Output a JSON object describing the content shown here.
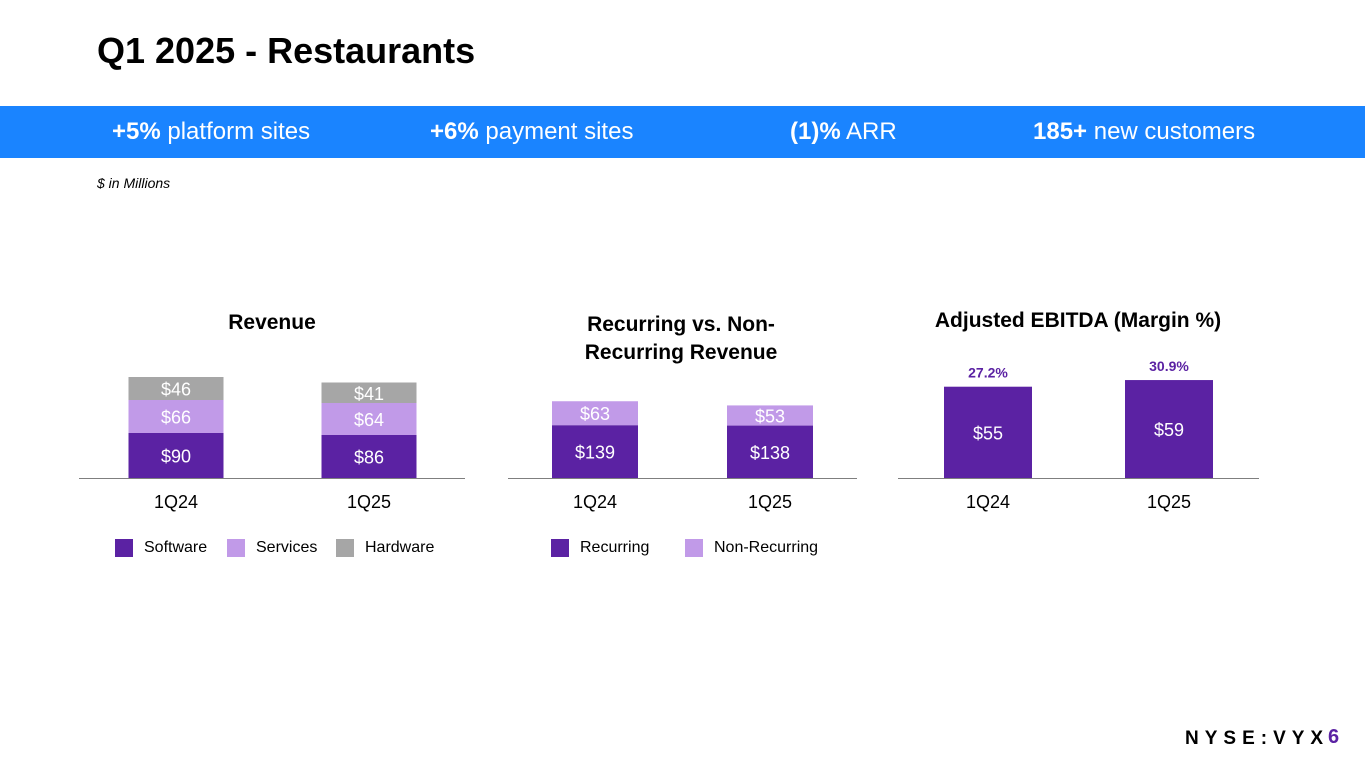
{
  "page": {
    "title": "Q1 2025 - Restaurants",
    "note": "$ in Millions",
    "brand": "NYSE:VYX",
    "page_number": "6"
  },
  "kpis": [
    {
      "value": "+5%",
      "label": "platform sites"
    },
    {
      "value": "+6%",
      "label": "payment sites"
    },
    {
      "value": "(1)%",
      "label": "ARR"
    },
    {
      "value": "185+",
      "label": "new customers"
    }
  ],
  "colors": {
    "banner": "#1a84ff",
    "software": "#5b22a3",
    "services": "#c19ae8",
    "hardware": "#a6a6a6",
    "recurring": "#5b22a3",
    "non_recurring": "#c19ae8",
    "ebitda": "#5b22a3"
  },
  "chart_data": [
    {
      "type": "bar",
      "stacked": true,
      "title": "Revenue",
      "categories": [
        "1Q24",
        "1Q25"
      ],
      "series": [
        {
          "name": "Software",
          "values": [
            90,
            86
          ],
          "labels": [
            "$90",
            "$86"
          ]
        },
        {
          "name": "Services",
          "values": [
            66,
            64
          ],
          "labels": [
            "$66",
            "$64"
          ]
        },
        {
          "name": "Hardware",
          "values": [
            46,
            41
          ],
          "labels": [
            "$46",
            "$41"
          ]
        }
      ],
      "legend": "bottom"
    },
    {
      "type": "bar",
      "stacked": true,
      "title": "Recurring vs. Non-Recurring Revenue",
      "title_lines": [
        "Recurring vs. Non-",
        "Recurring Revenue"
      ],
      "categories": [
        "1Q24",
        "1Q25"
      ],
      "series": [
        {
          "name": "Recurring",
          "values": [
            139,
            138
          ],
          "labels": [
            "$139",
            "$138"
          ]
        },
        {
          "name": "Non-Recurring",
          "values": [
            63,
            53
          ],
          "labels": [
            "$63",
            "$53"
          ]
        }
      ],
      "legend": "bottom"
    },
    {
      "type": "bar",
      "stacked": false,
      "title": "Adjusted EBITDA (Margin %)",
      "categories": [
        "1Q24",
        "1Q25"
      ],
      "series": [
        {
          "name": "Adjusted EBITDA",
          "values": [
            55,
            59
          ],
          "labels": [
            "$55",
            "$59"
          ],
          "margins": [
            "27.2%",
            "30.9%"
          ]
        }
      ]
    }
  ]
}
